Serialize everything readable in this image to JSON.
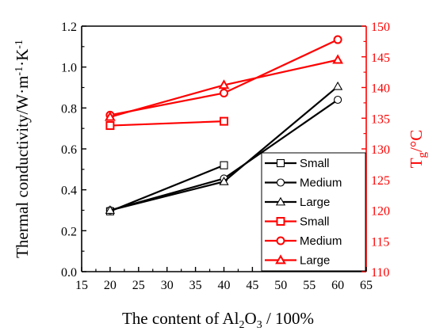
{
  "chart_data": {
    "type": "line",
    "x_axis": {
      "label_main": "The content of Al",
      "label_sub": "2",
      "label_mid": "O",
      "label_sub2": "3",
      "label_tail": " / 100%",
      "min": 15,
      "max": 65,
      "ticks": [
        15,
        20,
        25,
        30,
        35,
        40,
        45,
        50,
        55,
        60,
        65
      ]
    },
    "y_left": {
      "label_main": "Thermal conductivity/W·m",
      "label_sup1": "-1",
      "label_mid": "·K",
      "label_sup2": "-1",
      "min": 0.0,
      "max": 1.2,
      "ticks": [
        0.0,
        0.2,
        0.4,
        0.6,
        0.8,
        1.0,
        1.2
      ],
      "tick_labels": [
        "0.0",
        "0.2",
        "0.4",
        "0.6",
        "0.8",
        "1.0",
        "1.2"
      ],
      "color": "#000000"
    },
    "y_right": {
      "label_main": "T",
      "label_sub": "g",
      "label_tail": "/°C",
      "min": 110,
      "max": 150,
      "ticks": [
        110,
        115,
        120,
        125,
        130,
        135,
        140,
        145,
        150
      ],
      "color": "#ff0000"
    },
    "series": [
      {
        "name": "Small",
        "axis": "left",
        "color": "#000000",
        "marker": "square",
        "x": [
          20,
          40
        ],
        "y": [
          0.295,
          0.52
        ]
      },
      {
        "name": "Medium",
        "axis": "left",
        "color": "#000000",
        "marker": "circle",
        "x": [
          20,
          40,
          60
        ],
        "y": [
          0.3,
          0.455,
          0.84
        ]
      },
      {
        "name": "Large",
        "axis": "left",
        "color": "#000000",
        "marker": "triangle",
        "x": [
          20,
          40,
          60
        ],
        "y": [
          0.3,
          0.44,
          0.905
        ]
      },
      {
        "name": "Small",
        "axis": "right",
        "color": "#ff0000",
        "marker": "square",
        "x": [
          20,
          40
        ],
        "y": [
          133.8,
          134.5
        ]
      },
      {
        "name": "Medium",
        "axis": "right",
        "color": "#ff0000",
        "marker": "circle",
        "x": [
          20,
          40,
          60
        ],
        "y": [
          135.5,
          139.1,
          147.8
        ]
      },
      {
        "name": "Large",
        "axis": "right",
        "color": "#ff0000",
        "marker": "triangle",
        "x": [
          20,
          40,
          60
        ],
        "y": [
          135.2,
          140.4,
          144.5
        ]
      }
    ],
    "legend_position": "lower-right"
  }
}
